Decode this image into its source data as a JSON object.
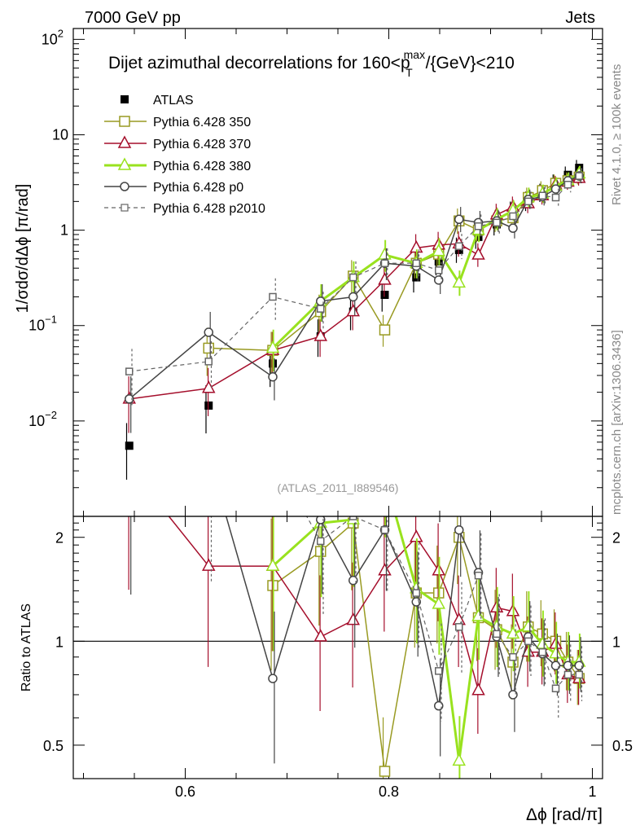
{
  "header": {
    "left": "7000 GeV pp",
    "right": "Jets"
  },
  "side_labels": {
    "rivet": "Rivet 4.1.0, ≥ 100k events",
    "source": "mcplots.cern.ch [arXiv:1306.3436]"
  },
  "analysis_id": "(ATLAS_2011_I889546)",
  "colors": {
    "atlas": "#000000",
    "p350": "#999a22",
    "p370": "#a50f2c",
    "p380": "#99e21e",
    "p0": "#444444",
    "p2010": "#666666"
  },
  "chart_data": {
    "type": "line",
    "title": "Dijet azimuthal decorrelations for 160<p_T^max/{GeV}<210",
    "title_parts": {
      "pre": "Dijet azimuthal decorrelations for 160<p",
      "sup": "max",
      "sub": "T",
      "post": "/{GeV}<210"
    },
    "xlabel": "Δϕ [rad/π]",
    "ylabel": "1/σdσ/dΔϕ [π/rad]",
    "ratio_ylabel": "Ratio to ATLAS",
    "xlim": [
      0.49,
      1.01
    ],
    "ylim": [
      0.001,
      130
    ],
    "yscale": "log",
    "ratio_ylim": [
      0.4,
      2.3
    ],
    "ratio_yscale": "log",
    "x_ticks": [
      {
        "v": 0.6,
        "label": "0.6"
      },
      {
        "v": 0.8,
        "label": "0.8"
      },
      {
        "v": 1.0,
        "label": "1"
      }
    ],
    "y_ticks": [
      {
        "v": 0.01,
        "base": "10",
        "exp": "−2"
      },
      {
        "v": 0.1,
        "base": "10",
        "exp": "−1"
      },
      {
        "v": 1,
        "base": "1",
        "exp": ""
      },
      {
        "v": 10,
        "base": "10",
        "exp": ""
      },
      {
        "v": 100,
        "base": "10",
        "exp": "2"
      }
    ],
    "ratio_ticks": [
      {
        "v": 0.5,
        "label": "0.5"
      },
      {
        "v": 1,
        "label": "1"
      },
      {
        "v": 2,
        "label": "2"
      }
    ],
    "x": [
      0.545,
      0.623,
      0.686,
      0.733,
      0.765,
      0.796,
      0.827,
      0.849,
      0.869,
      0.888,
      0.906,
      0.922,
      0.937,
      0.951,
      0.964,
      0.976,
      0.987
    ],
    "series": [
      {
        "key": "atlas",
        "name": "ATLAS",
        "marker": "filled-square",
        "dashed": false,
        "values": [
          0.0055,
          0.0145,
          0.04,
          0.077,
          0.14,
          0.21,
          0.32,
          0.47,
          0.62,
          0.85,
          1.15,
          1.55,
          2.0,
          2.45,
          3.1,
          3.8,
          4.5
        ]
      },
      {
        "key": "p350",
        "name": "Pythia 6.428 350",
        "marker": "open-square",
        "dashed": false,
        "values": [
          null,
          0.058,
          0.055,
          0.14,
          0.33,
          0.09,
          0.45,
          0.56,
          1.25,
          1.0,
          1.25,
          1.35,
          2.2,
          2.6,
          3.1,
          3.3,
          3.6
        ],
        "ratio": [
          null,
          null,
          1.45,
          1.82,
          2.2,
          0.42,
          1.38,
          1.38,
          2.0,
          1.17,
          1.08,
          0.87,
          1.1,
          1.05,
          1.0,
          0.87,
          0.78
        ]
      },
      {
        "key": "p370",
        "name": "Pythia 6.428 370",
        "marker": "open-triangle",
        "dashed": false,
        "values": [
          0.017,
          0.022,
          0.055,
          0.077,
          0.14,
          0.3,
          0.65,
          0.7,
          0.72,
          0.55,
          1.45,
          1.75,
          1.9,
          2.3,
          3.0,
          3.2,
          3.5
        ],
        "ratio": [
          3.2,
          1.65,
          1.65,
          1.03,
          1.15,
          1.6,
          2.0,
          1.6,
          1.15,
          0.72,
          1.25,
          1.22,
          0.93,
          0.93,
          0.98,
          0.8,
          0.78
        ]
      },
      {
        "key": "p380",
        "name": "Pythia 6.428 380",
        "marker": "open-triangle",
        "dashed": false,
        "values": [
          null,
          null,
          0.058,
          0.18,
          0.32,
          0.55,
          0.45,
          0.6,
          0.28,
          1.0,
          1.3,
          1.6,
          2.2,
          2.4,
          2.9,
          3.3,
          3.9
        ],
        "ratio": [
          null,
          null,
          1.65,
          2.2,
          2.25,
          3.0,
          1.42,
          1.28,
          0.45,
          1.18,
          1.1,
          1.05,
          1.1,
          0.98,
          0.92,
          0.87,
          0.87
        ]
      },
      {
        "key": "p0",
        "name": "Pythia 6.428 p0",
        "marker": "open-circle",
        "dashed": false,
        "values": [
          0.017,
          0.085,
          0.029,
          0.18,
          0.2,
          0.45,
          0.42,
          0.3,
          1.3,
          1.2,
          1.25,
          1.05,
          2.1,
          2.25,
          2.7,
          3.3,
          3.7
        ],
        "ratio": [
          3.1,
          5.9,
          0.78,
          2.25,
          1.5,
          2.1,
          1.3,
          0.65,
          2.1,
          1.58,
          1.03,
          0.7,
          1.03,
          0.92,
          0.85,
          0.85,
          0.85
        ]
      },
      {
        "key": "p2010",
        "name": "Pythia 6.428 p2010",
        "marker": "open-square",
        "dashed": true,
        "values": [
          0.033,
          0.042,
          0.2,
          0.15,
          0.32,
          0.45,
          0.45,
          0.38,
          0.68,
          1.1,
          1.2,
          1.4,
          2.0,
          2.3,
          2.2,
          3.0,
          3.7
        ],
        "ratio": [
          6.0,
          2.9,
          5.0,
          1.95,
          2.3,
          2.1,
          1.38,
          0.82,
          1.1,
          1.55,
          1.05,
          0.9,
          1.0,
          0.93,
          0.73,
          0.8,
          0.8
        ]
      }
    ]
  }
}
